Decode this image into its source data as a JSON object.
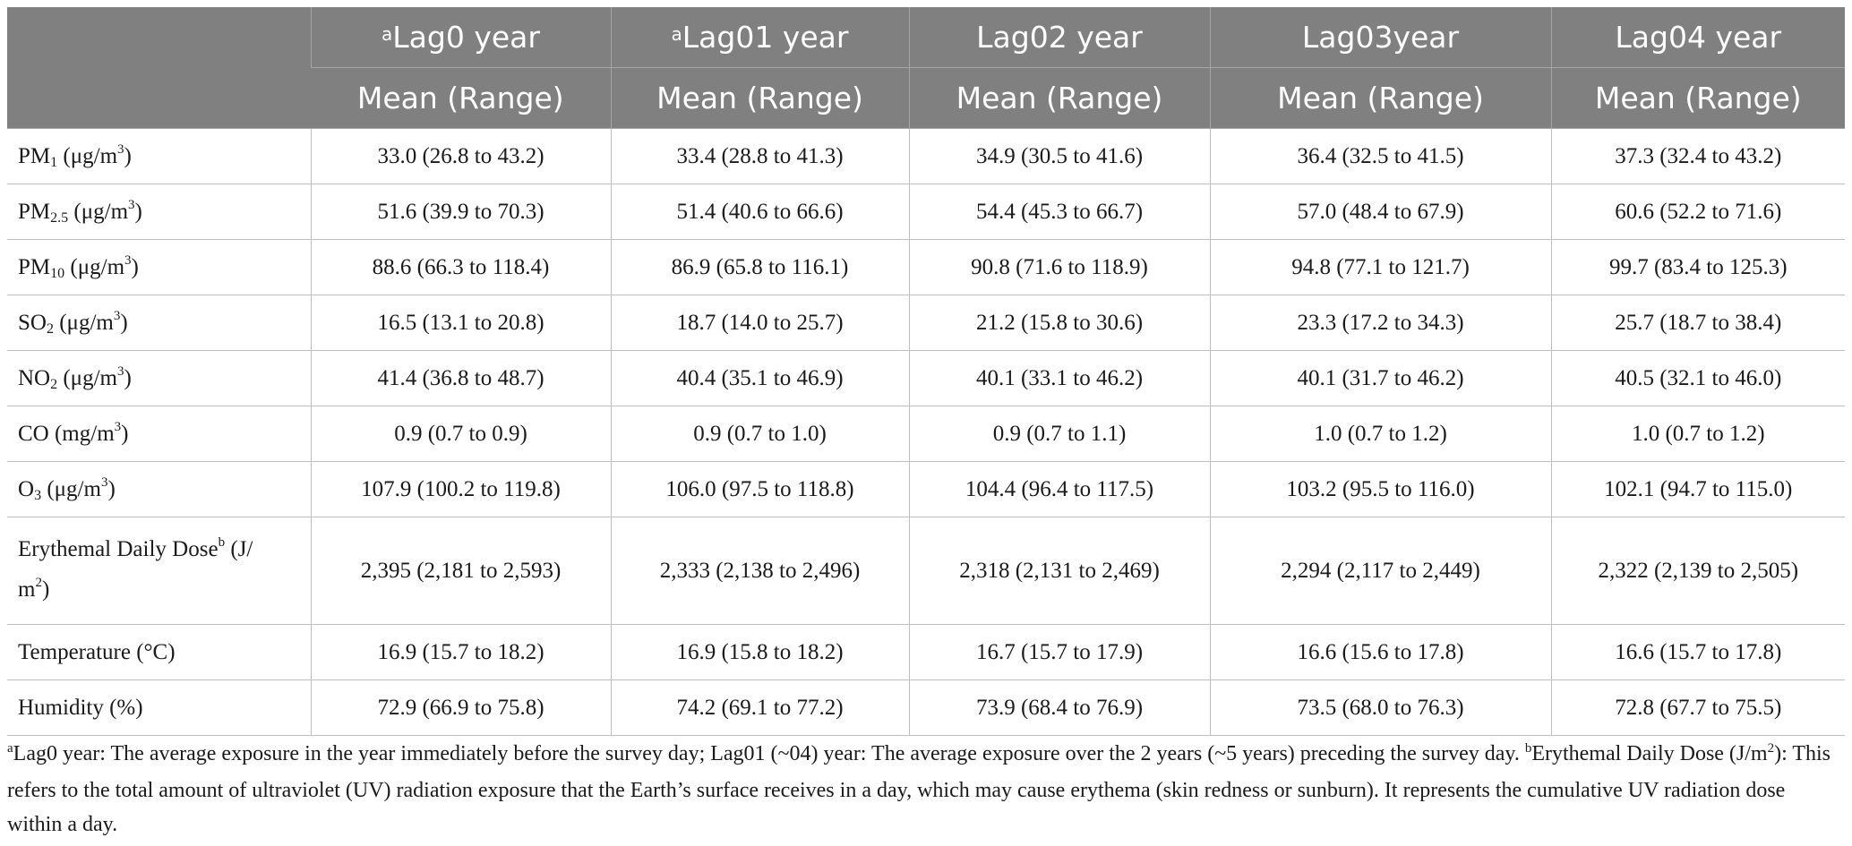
{
  "header": {
    "columns": [
      {
        "sup": "",
        "label": "",
        "sub_label": ""
      },
      {
        "sup": "a",
        "label": "Lag0 year",
        "sub_label": "Mean (Range)"
      },
      {
        "sup": "a",
        "label": "Lag01 year",
        "sub_label": "Mean (Range)"
      },
      {
        "sup": "",
        "label": "Lag02 year",
        "sub_label": "Mean (Range)"
      },
      {
        "sup": "",
        "label": "Lag03year",
        "sub_label": "Mean (Range)"
      },
      {
        "sup": "",
        "label": "Lag04 year",
        "sub_label": "Mean (Range)"
      }
    ]
  },
  "rows": [
    {
      "name_main": "PM",
      "name_sub": "1",
      "name_rest": " (μg/m",
      "name_sup": "3",
      "name_end": ")",
      "values": [
        "33.0 (26.8 to 43.2)",
        "33.4 (28.8 to 41.3)",
        "34.9 (30.5 to 41.6)",
        "36.4 (32.5 to 41.5)",
        "37.3 (32.4 to 43.2)"
      ]
    },
    {
      "name_main": "PM",
      "name_sub": "2.5",
      "name_rest": " (μg/m",
      "name_sup": "3",
      "name_end": ")",
      "values": [
        "51.6 (39.9 to 70.3)",
        "51.4 (40.6 to 66.6)",
        "54.4 (45.3 to 66.7)",
        "57.0 (48.4 to 67.9)",
        "60.6 (52.2 to 71.6)"
      ]
    },
    {
      "name_main": "PM",
      "name_sub": "10",
      "name_rest": " (μg/m",
      "name_sup": "3",
      "name_end": ")",
      "values": [
        "88.6 (66.3 to 118.4)",
        "86.9 (65.8 to 116.1)",
        "90.8 (71.6 to 118.9)",
        "94.8 (77.1 to 121.7)",
        "99.7 (83.4 to 125.3)"
      ]
    },
    {
      "name_main": "SO",
      "name_sub": "2",
      "name_rest": " (μg/m",
      "name_sup": "3",
      "name_end": ")",
      "values": [
        "16.5 (13.1 to 20.8)",
        "18.7 (14.0 to 25.7)",
        "21.2 (15.8 to 30.6)",
        "23.3 (17.2 to 34.3)",
        "25.7 (18.7 to 38.4)"
      ]
    },
    {
      "name_main": "NO",
      "name_sub": "2",
      "name_rest": " (μg/m",
      "name_sup": "3",
      "name_end": ")",
      "values": [
        "41.4 (36.8 to 48.7)",
        "40.4 (35.1 to 46.9)",
        "40.1 (33.1 to 46.2)",
        "40.1 (31.7 to 46.2)",
        "40.5 (32.1 to 46.0)"
      ]
    },
    {
      "name_main": "CO",
      "name_sub": "",
      "name_rest": " (mg/m",
      "name_sup": "3",
      "name_end": ")",
      "values": [
        "0.9 (0.7 to 0.9)",
        "0.9 (0.7 to 1.0)",
        "0.9 (0.7 to 1.1)",
        "1.0 (0.7 to 1.2)",
        "1.0 (0.7 to 1.2)"
      ]
    },
    {
      "name_main": "O",
      "name_sub": "3",
      "name_rest": " (μg/m",
      "name_sup": "3",
      "name_end": ")",
      "values": [
        "107.9 (100.2 to 119.8)",
        "106.0 (97.5 to 118.8)",
        "104.4 (96.4 to 117.5)",
        "103.2 (95.5 to 116.0)",
        "102.1 (94.7 to 115.0)"
      ]
    },
    {
      "name_main": "Erythemal Daily Dose",
      "name_sup_b": "b",
      "name_line1_rest": " (J/",
      "name_line2": "m",
      "name_sup": "2",
      "name_end": ")",
      "values": [
        "2,395 (2,181 to 2,593)",
        "2,333 (2,138 to 2,496)",
        "2,318 (2,131 to 2,469)",
        "2,294 (2,117 to 2,449)",
        "2,322 (2,139 to 2,505)"
      ]
    },
    {
      "name_main": "Temperature (°C)",
      "name_sub": "",
      "name_rest": "",
      "name_sup": "",
      "name_end": "",
      "values": [
        "16.9 (15.7 to 18.2)",
        "16.9 (15.8 to 18.2)",
        "16.7 (15.7 to 17.9)",
        "16.6 (15.6 to 17.8)",
        "16.6 (15.7 to 17.8)"
      ]
    },
    {
      "name_main": "Humidity (%)",
      "name_sub": "",
      "name_rest": "",
      "name_sup": "",
      "name_end": "",
      "values": [
        "72.9 (66.9 to 75.8)",
        "74.2 (69.1 to 77.2)",
        "73.9 (68.4 to 76.9)",
        "73.5 (68.0 to 76.3)",
        "72.8 (67.7 to 75.5)"
      ]
    }
  ],
  "footnote": {
    "a_mark": "a",
    "a_text": "Lag0 year: The average exposure in the year immediately before the survey day; Lag01 (~04) year: The average exposure over the 2 years (~5 years) preceding the survey day. ",
    "b_mark": "b",
    "b_text_1": "Erythemal Daily Dose (J/m",
    "b_sup": "2",
    "b_text_2": "): This refers to the total amount of ultraviolet (UV) radiation exposure that the Earth’s surface receives in a day, which may cause erythema (skin redness or sunburn). It represents the cumulative UV radiation dose within a day."
  },
  "colors": {
    "header_bg": "#7f807f",
    "header_text": "#ffffff",
    "grid": "#bfbfbf"
  }
}
